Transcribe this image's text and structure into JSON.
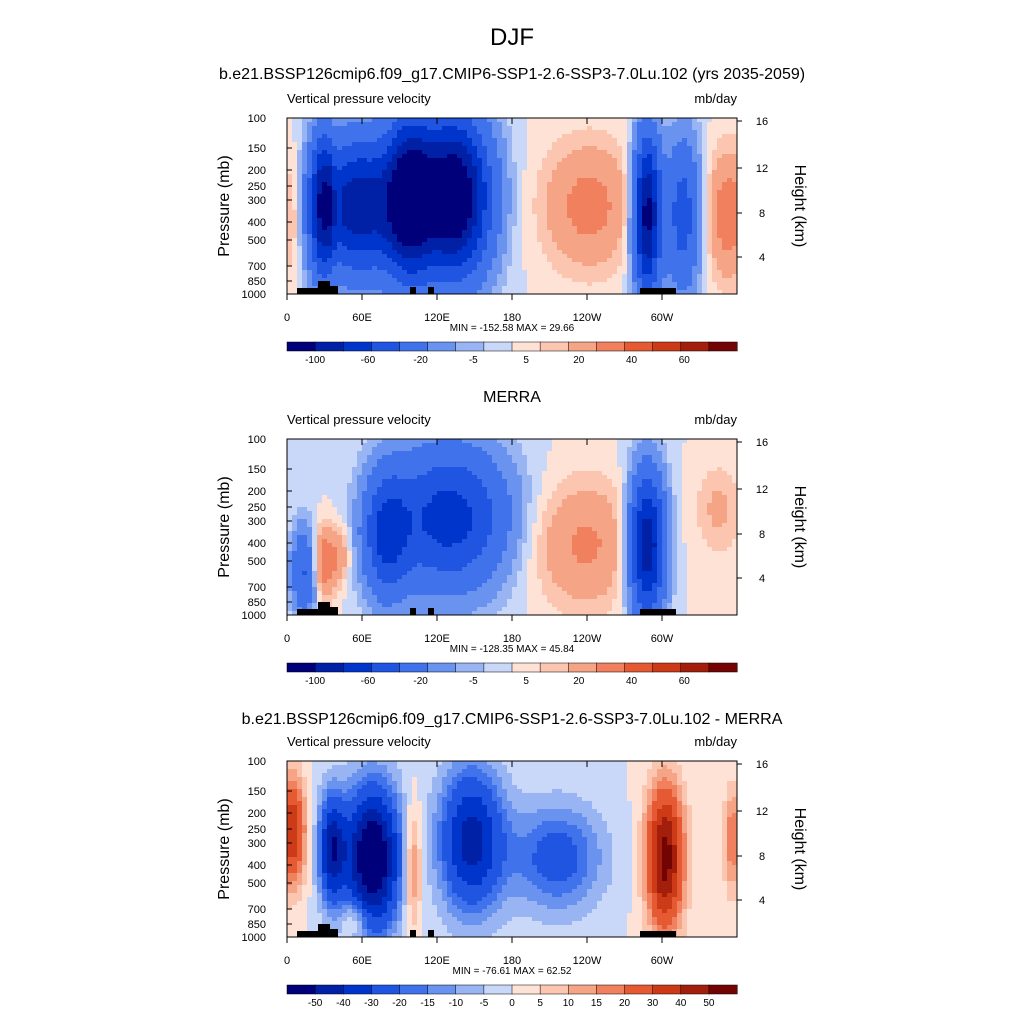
{
  "main_title": "DJF",
  "chart_data": [
    {
      "type": "heatmap",
      "title": "b.e21.BSSP126cmip6.f09_g17.CMIP6-SSP1-2.6-SSP3-7.0Lu.102 (yrs 2035-2059)",
      "left_label": "Vertical pressure velocity",
      "right_label": "mb/day",
      "ylabel": "Pressure (mb)",
      "y2label": "Height (km)",
      "pressure_ticks": [
        "100",
        "150",
        "200",
        "250",
        "300",
        "400",
        "500",
        "700",
        "850",
        "1000"
      ],
      "height_ticks": [
        "16",
        "12",
        "8",
        "4"
      ],
      "x_ticks": [
        "0",
        "60E",
        "120E",
        "180",
        "120W",
        "60W"
      ],
      "stats": "MIN = -152.58  MAX =  29.66",
      "colorbar_labels": [
        "-100",
        "-60",
        "-20",
        "-5",
        "5",
        "20",
        "40",
        "60"
      ],
      "colorbar_colors": [
        "#00007a",
        "#0020a6",
        "#0035cc",
        "#1f55e0",
        "#3f72eb",
        "#6993ef",
        "#98b4f2",
        "#c9d8f8",
        "#ffe2d6",
        "#fbc5af",
        "#f5a485",
        "#f0805e",
        "#e55a32",
        "#cd3a17",
        "#a31f0c",
        "#740404"
      ]
    },
    {
      "type": "heatmap",
      "title": "MERRA",
      "left_label": "Vertical pressure velocity",
      "right_label": "mb/day",
      "ylabel": "Pressure (mb)",
      "y2label": "Height (km)",
      "pressure_ticks": [
        "100",
        "150",
        "200",
        "250",
        "300",
        "400",
        "500",
        "700",
        "850",
        "1000"
      ],
      "height_ticks": [
        "16",
        "12",
        "8",
        "4"
      ],
      "x_ticks": [
        "0",
        "60E",
        "120E",
        "180",
        "120W",
        "60W"
      ],
      "stats": "MIN = -128.35  MAX =  45.84",
      "colorbar_labels": [
        "-100",
        "-60",
        "-20",
        "-5",
        "5",
        "20",
        "40",
        "60"
      ],
      "colorbar_colors": [
        "#00007a",
        "#0020a6",
        "#0035cc",
        "#1f55e0",
        "#3f72eb",
        "#6993ef",
        "#98b4f2",
        "#c9d8f8",
        "#ffe2d6",
        "#fbc5af",
        "#f5a485",
        "#f0805e",
        "#e55a32",
        "#cd3a17",
        "#a31f0c",
        "#740404"
      ]
    },
    {
      "type": "heatmap",
      "title": "b.e21.BSSP126cmip6.f09_g17.CMIP6-SSP1-2.6-SSP3-7.0Lu.102 - MERRA",
      "left_label": "Vertical pressure velocity",
      "right_label": "mb/day",
      "ylabel": "Pressure (mb)",
      "y2label": "Height (km)",
      "pressure_ticks": [
        "100",
        "150",
        "200",
        "250",
        "300",
        "400",
        "500",
        "700",
        "850",
        "1000"
      ],
      "height_ticks": [
        "16",
        "12",
        "8",
        "4"
      ],
      "x_ticks": [
        "0",
        "60E",
        "120E",
        "180",
        "120W",
        "60W"
      ],
      "stats": "MIN = -76.61  MAX =  62.52",
      "colorbar_labels": [
        "-50",
        "-40",
        "-30",
        "-20",
        "-15",
        "-10",
        "-5",
        "0",
        "5",
        "10",
        "15",
        "20",
        "30",
        "40",
        "50"
      ],
      "colorbar_colors": [
        "#00007a",
        "#0020a6",
        "#0035cc",
        "#1f55e0",
        "#3f72eb",
        "#6993ef",
        "#98b4f2",
        "#c9d8f8",
        "#ffe2d6",
        "#fbc5af",
        "#f5a485",
        "#f0805e",
        "#e55a32",
        "#cd3a17",
        "#a31f0c",
        "#740404"
      ]
    }
  ]
}
